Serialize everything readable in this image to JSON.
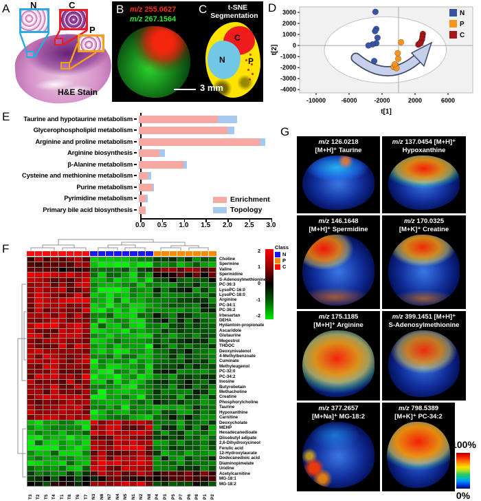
{
  "panel_a": {
    "label": "A",
    "stain_label": "H&E Stain",
    "insets": [
      {
        "label": "N",
        "color": "#29abe2"
      },
      {
        "label": "C",
        "color": "#ed1c24"
      },
      {
        "label": "P",
        "color": "#f7a11a"
      }
    ]
  },
  "panel_b": {
    "label": "B",
    "lines": [
      {
        "text": "m/z 255.0627",
        "color": "#ff2a1a"
      },
      {
        "text": "m/z 267.1564",
        "color": "#2ee636"
      }
    ],
    "scale_bar_label": "3 mm"
  },
  "panel_c": {
    "label": "C",
    "title_line1": "t-SNE",
    "title_line2": "Segmentation",
    "regions": [
      {
        "label": "C"
      },
      {
        "label": "N"
      },
      {
        "label": "P"
      }
    ]
  },
  "panel_d": {
    "label": "D"
  },
  "panel_e": {
    "label": "E"
  },
  "panel_f": {
    "label": "F"
  },
  "panel_g": {
    "label": "G",
    "tiles": [
      {
        "line1": "m/z 126.0218",
        "line2": "[M+H]⁺ Taurine",
        "blob_style": "hs-taurine"
      },
      {
        "line1": "m/z 137.0454 [M+H]⁺",
        "line2": "Hypoxanthine",
        "blob_style": "hs-hypoxanthine"
      },
      {
        "line1": "m/z 146.1648",
        "line2": "[M+H]⁺ Spermidine",
        "blob_style": "hs-spermidine"
      },
      {
        "line1": "m/z 170.0325",
        "line2": "[M+K]⁺ Creatine",
        "blob_style": "hs-creatine"
      },
      {
        "line1": "m/z 175.1185",
        "line2": "[M+H]⁺ Arginine",
        "blob_style": "hs-arginine"
      },
      {
        "line1": "m/z 399.1451 [M+H]⁺",
        "line2": "S-Adenosylmethionine",
        "blob_style": "hs-sam"
      },
      {
        "line1": "m/z 377.2657",
        "line2": "[M+Na]⁺ MG-18:2",
        "blob_style": "hs-mg182"
      },
      {
        "line1": "m/z 798.5389",
        "line2": "[M+K]⁺ PC-34:2",
        "blob_style": "hs-pc342"
      }
    ],
    "colorbar": {
      "top_label": "100%",
      "bottom_label": "0%"
    }
  },
  "chart_data": [
    {
      "id": "tsne_scores_plot",
      "type": "scatter",
      "xlabel": "t[1]",
      "ylabel": "t[2]",
      "xlim": [
        -12000,
        9000
      ],
      "ylim": [
        -4300,
        3500
      ],
      "xticks": [
        -10000,
        -6000,
        -2000,
        2000,
        6000
      ],
      "yticks": [
        3000,
        2000,
        1000,
        0,
        -1000,
        -2000,
        -3000,
        -4000
      ],
      "legend": [
        {
          "name": "N",
          "color": "#3a53a5"
        },
        {
          "name": "P",
          "color": "#f7941d"
        },
        {
          "name": "C",
          "color": "#a6171c"
        }
      ],
      "ellipse": {
        "cx": -1600,
        "cy": -400,
        "rx": 7400,
        "ry": 3000
      },
      "series": [
        {
          "name": "N",
          "color": "#3a53a5",
          "points": [
            [
              -2800,
              3050
            ],
            [
              -2700,
              1500
            ],
            [
              -2850,
              1300
            ],
            [
              -2550,
              700
            ],
            [
              -2700,
              200
            ],
            [
              -3150,
              100
            ],
            [
              -3650,
              0
            ],
            [
              -2950,
              -1400
            ]
          ]
        },
        {
          "name": "P",
          "color": "#f7941d",
          "points": [
            [
              300,
              300
            ],
            [
              -100,
              -700
            ],
            [
              -50,
              -1200
            ],
            [
              -350,
              -1800
            ],
            [
              -600,
              -1950
            ],
            [
              -250,
              -2050
            ],
            [
              -450,
              -1700
            ]
          ]
        },
        {
          "name": "C",
          "color": "#a6171c",
          "points": [
            [
              2950,
              1050
            ],
            [
              2900,
              800
            ],
            [
              2850,
              550
            ],
            [
              2700,
              300
            ],
            [
              2500,
              150
            ],
            [
              2400,
              80
            ],
            [
              2650,
              200
            ]
          ]
        }
      ]
    },
    {
      "id": "pathway_enrichment",
      "type": "bar",
      "categories": [
        "Taurine and hypotaurine metabolism",
        "Glycerophospholipid metabolism",
        "Arginine and proline metabolism",
        "Arginine biosynthesis",
        "β-Alanine metabolism",
        "Cysteine and methionine metabolism",
        "Purine metabolism",
        "Pyrimidine metabolism",
        "Primary bile acid biosynthesis"
      ],
      "series": [
        {
          "name": "Enrichment",
          "color": "#f7a8a3",
          "values": [
            1.81,
            2.03,
            2.77,
            0.47,
            1.02,
            0.21,
            0.31,
            0.16,
            0.16
          ]
        },
        {
          "name": "Topology",
          "color": "#a6c8ee",
          "values": [
            0.44,
            0.16,
            0.12,
            0.13,
            0.08,
            0.08,
            0.04,
            0.05,
            0.0
          ]
        }
      ],
      "xticks": [
        0.0,
        0.5,
        1.0,
        1.5,
        2.0,
        2.5,
        3.0
      ],
      "xlim": [
        0,
        3.0
      ]
    },
    {
      "id": "metabolite_heatmap",
      "type": "heatmap",
      "legend_title": "Class",
      "legend": [
        {
          "name": "N",
          "color": "#1717ee"
        },
        {
          "name": "P",
          "color": "#ff8a00"
        },
        {
          "name": "C",
          "color": "#fb0d0e"
        }
      ],
      "class_colors": {
        "N": "#1717ee",
        "P": "#ff8a00",
        "C": "#fb0d0e"
      },
      "scale_ticks": [
        2,
        1,
        0,
        -1,
        -2
      ],
      "columns": [
        "T3",
        "T2",
        "T5",
        "T4",
        "T1",
        "T8",
        "T6",
        "T7",
        "N3",
        "N6",
        "N7",
        "N4",
        "N5",
        "N1",
        "N2",
        "N8",
        "P4",
        "P3",
        "P5",
        "P7",
        "P6",
        "P8",
        "P1",
        "P2"
      ],
      "column_classes": [
        "C",
        "C",
        "C",
        "C",
        "C",
        "C",
        "C",
        "C",
        "N",
        "N",
        "N",
        "N",
        "N",
        "N",
        "N",
        "N",
        "P",
        "P",
        "P",
        "P",
        "P",
        "P",
        "P",
        "P"
      ],
      "rows": [
        {
          "label": "Choline",
          "C": 1.0,
          "N": -1.2,
          "P": -0.7
        },
        {
          "label": "Spermine",
          "C": 0.9,
          "N": -1.8,
          "P": -1.0
        },
        {
          "label": "Valine",
          "C": 0.45,
          "N": -0.9,
          "P": 0.85
        },
        {
          "label": "Spermidine",
          "C": 1.6,
          "N": -1.3,
          "P": 0.35
        },
        {
          "label": "S-Adenosylmethionine",
          "C": 1.1,
          "N": -1.5,
          "P": -0.4
        },
        {
          "label": "PC-36:3",
          "C": 1.2,
          "N": -1.4,
          "P": -0.8
        },
        {
          "label": "LysoPC-16:0",
          "C": 1.1,
          "N": -1.5,
          "P": -0.7
        },
        {
          "label": "LysoPC-18:0",
          "C": 1.25,
          "N": -1.4,
          "P": -0.8
        },
        {
          "label": "Arginine",
          "C": 1.4,
          "N": -1.3,
          "P": -0.9
        },
        {
          "label": "PC-34:1",
          "C": 1.2,
          "N": -1.5,
          "P": -0.7
        },
        {
          "label": "PC-36:2",
          "C": 1.3,
          "N": -1.4,
          "P": -0.8
        },
        {
          "label": "Irbesartan",
          "C": 1.15,
          "N": -1.2,
          "P": -0.6
        },
        {
          "label": "DEHA",
          "C": 1.25,
          "N": -1.4,
          "P": -0.7
        },
        {
          "label": "Hydantoin-propionate",
          "C": 1.5,
          "N": -1.3,
          "P": -0.8
        },
        {
          "label": "Ascaridole",
          "C": 1.2,
          "N": -1.5,
          "P": -0.7
        },
        {
          "label": "Glutaurine",
          "C": 1.3,
          "N": -1.4,
          "P": -0.8
        },
        {
          "label": "Megestrol",
          "C": 1.2,
          "N": -1.3,
          "P": -0.7
        },
        {
          "label": "THDOC",
          "C": 1.3,
          "N": -1.5,
          "P": -0.8
        },
        {
          "label": "Deoxynivalenol",
          "C": 1.2,
          "N": -1.4,
          "P": -0.7
        },
        {
          "label": "4-Methylbenzoate",
          "C": 1.3,
          "N": -1.3,
          "P": -0.8
        },
        {
          "label": "Cuminate",
          "C": 1.2,
          "N": -1.5,
          "P": -0.7
        },
        {
          "label": "Methyleugenol",
          "C": 1.3,
          "N": -1.4,
          "P": -0.8
        },
        {
          "label": "PC-32:0",
          "C": 1.2,
          "N": -1.4,
          "P": -0.75
        },
        {
          "label": "PC-34:2",
          "C": 1.3,
          "N": -1.5,
          "P": -0.8
        },
        {
          "label": "Inosine",
          "C": 1.1,
          "N": -1.3,
          "P": -0.6
        },
        {
          "label": "Butyrobetain",
          "C": 1.3,
          "N": -1.4,
          "P": -0.8
        },
        {
          "label": "Methacholine",
          "C": 1.2,
          "N": -1.5,
          "P": -0.7
        },
        {
          "label": "Creatine",
          "C": 1.4,
          "N": -1.4,
          "P": -0.9
        },
        {
          "label": "Phosphorylcholine",
          "C": 1.2,
          "N": -1.3,
          "P": -0.7
        },
        {
          "label": "Taurine",
          "C": 1.45,
          "N": -1.5,
          "P": -0.9
        },
        {
          "label": "Hypoxanthine",
          "C": 1.3,
          "N": -1.4,
          "P": -0.8
        },
        {
          "label": "Carnitine",
          "C": 1.2,
          "N": -1.4,
          "P": -0.7
        },
        {
          "label": "Deoxycholate",
          "C": -1.3,
          "N": 1.3,
          "P": -0.9
        },
        {
          "label": "MEHP",
          "C": -1.4,
          "N": 1.2,
          "P": -0.85
        },
        {
          "label": "Hexadecanedioate",
          "C": -1.3,
          "N": 1.45,
          "P": -0.9
        },
        {
          "label": "Diisobutyl adipate",
          "C": -1.4,
          "N": 1.2,
          "P": -0.8
        },
        {
          "label": "2,6-Dihydroxycineol",
          "C": -1.35,
          "N": 1.3,
          "P": -0.9
        },
        {
          "label": "Ferulic acid",
          "C": -1.4,
          "N": 1.45,
          "P": -0.8
        },
        {
          "label": "12-Hydroxylaurate",
          "C": -1.3,
          "N": 1.2,
          "P": -0.9
        },
        {
          "label": "Dodecanedioic acid",
          "C": -1.4,
          "N": 1.3,
          "P": -0.85
        },
        {
          "label": "Diaminopimelate",
          "C": -1.3,
          "N": 1.45,
          "P": -0.9
        },
        {
          "label": "Uridine",
          "C": -1.2,
          "N": 1.2,
          "P": -0.8
        },
        {
          "label": "Acetylcarnitine",
          "C": -0.8,
          "N": 1.1,
          "P": 0.6
        },
        {
          "label": "MG-18:1",
          "C": -0.4,
          "N": 0.3,
          "P": 0.25
        },
        {
          "label": "MG-18:2",
          "C": -0.15,
          "N": 1.3,
          "P": -0.2
        }
      ]
    }
  ]
}
